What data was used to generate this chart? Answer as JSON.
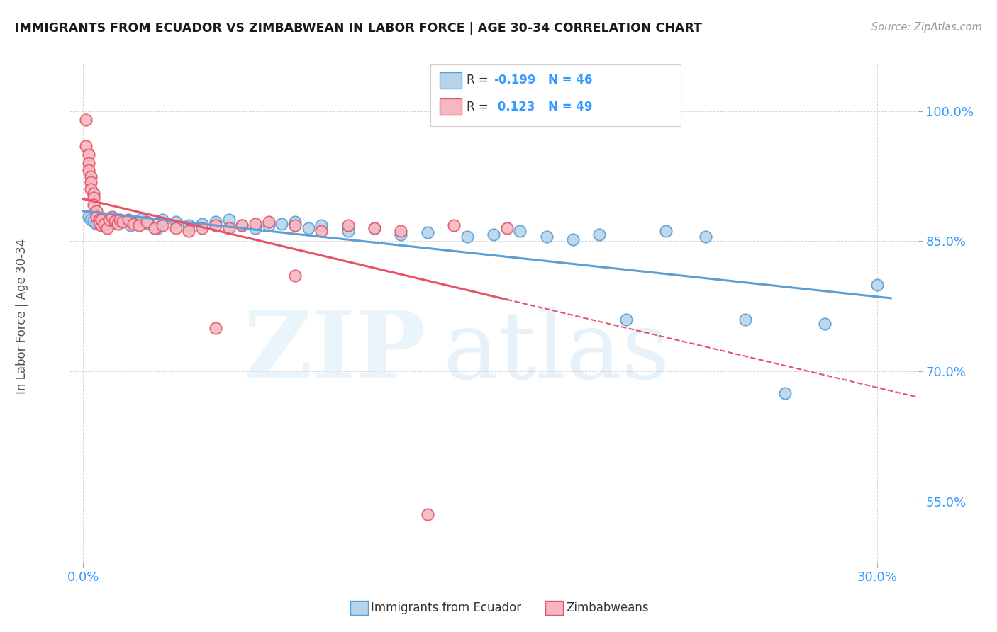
{
  "title": "IMMIGRANTS FROM ECUADOR VS ZIMBABWEAN IN LABOR FORCE | AGE 30-34 CORRELATION CHART",
  "source": "Source: ZipAtlas.com",
  "ylabel": "In Labor Force | Age 30-34",
  "ecuador_color": "#b8d4ea",
  "ecuador_edge_color": "#5b9fd4",
  "zimbabwe_color": "#f5b8c0",
  "zimbabwe_edge_color": "#e8536a",
  "ecuador_line_color": "#5b9fd4",
  "zimbabwe_line_color": "#e8536a",
  "ecuador_R": -0.199,
  "ecuador_N": 46,
  "zimbabwe_R": 0.123,
  "zimbabwe_N": 49,
  "xlim": [
    -0.005,
    0.315
  ],
  "ylim": [
    0.48,
    1.055
  ],
  "xticks": [
    0.0,
    0.3
  ],
  "xtick_labels": [
    "0.0%",
    "30.0%"
  ],
  "yticks": [
    0.55,
    0.7,
    0.85,
    1.0
  ],
  "ytick_labels": [
    "55.0%",
    "70.0%",
    "85.0%",
    "100.0%"
  ],
  "legend_ecuador": "Immigrants from Ecuador",
  "legend_zimbabwe": "Zimbabweans",
  "ecuador_x": [
    0.002,
    0.003,
    0.004,
    0.005,
    0.006,
    0.007,
    0.008,
    0.009,
    0.01,
    0.012,
    0.015,
    0.018,
    0.02,
    0.022,
    0.025,
    0.028,
    0.03,
    0.035,
    0.04,
    0.045,
    0.05,
    0.055,
    0.06,
    0.065,
    0.07,
    0.075,
    0.08,
    0.085,
    0.09,
    0.1,
    0.11,
    0.12,
    0.13,
    0.145,
    0.155,
    0.165,
    0.175,
    0.185,
    0.195,
    0.205,
    0.22,
    0.235,
    0.25,
    0.265,
    0.28,
    0.3
  ],
  "ecuador_y": [
    0.878,
    0.875,
    0.873,
    0.87,
    0.875,
    0.868,
    0.872,
    0.87,
    0.876,
    0.871,
    0.873,
    0.868,
    0.872,
    0.876,
    0.87,
    0.865,
    0.875,
    0.872,
    0.868,
    0.87,
    0.872,
    0.875,
    0.868,
    0.865,
    0.868,
    0.87,
    0.872,
    0.865,
    0.868,
    0.862,
    0.865,
    0.858,
    0.86,
    0.855,
    0.858,
    0.862,
    0.855,
    0.852,
    0.858,
    0.76,
    0.862,
    0.855,
    0.76,
    0.675,
    0.755,
    0.8
  ],
  "zimbabwe_x": [
    0.001,
    0.001,
    0.002,
    0.002,
    0.002,
    0.003,
    0.003,
    0.003,
    0.004,
    0.004,
    0.004,
    0.005,
    0.005,
    0.006,
    0.006,
    0.007,
    0.007,
    0.008,
    0.009,
    0.01,
    0.011,
    0.012,
    0.013,
    0.014,
    0.015,
    0.017,
    0.019,
    0.021,
    0.024,
    0.027,
    0.03,
    0.035,
    0.04,
    0.045,
    0.05,
    0.055,
    0.06,
    0.065,
    0.07,
    0.08,
    0.09,
    0.1,
    0.11,
    0.12,
    0.14,
    0.16,
    0.05,
    0.08,
    0.13
  ],
  "zimbabwe_y": [
    0.99,
    0.96,
    0.95,
    0.94,
    0.932,
    0.925,
    0.918,
    0.91,
    0.905,
    0.9,
    0.892,
    0.885,
    0.878,
    0.875,
    0.87,
    0.868,
    0.875,
    0.87,
    0.865,
    0.875,
    0.878,
    0.873,
    0.87,
    0.875,
    0.872,
    0.875,
    0.87,
    0.868,
    0.872,
    0.865,
    0.868,
    0.865,
    0.862,
    0.865,
    0.868,
    0.865,
    0.868,
    0.87,
    0.872,
    0.868,
    0.862,
    0.868,
    0.865,
    0.862,
    0.868,
    0.865,
    0.75,
    0.81,
    0.535
  ]
}
